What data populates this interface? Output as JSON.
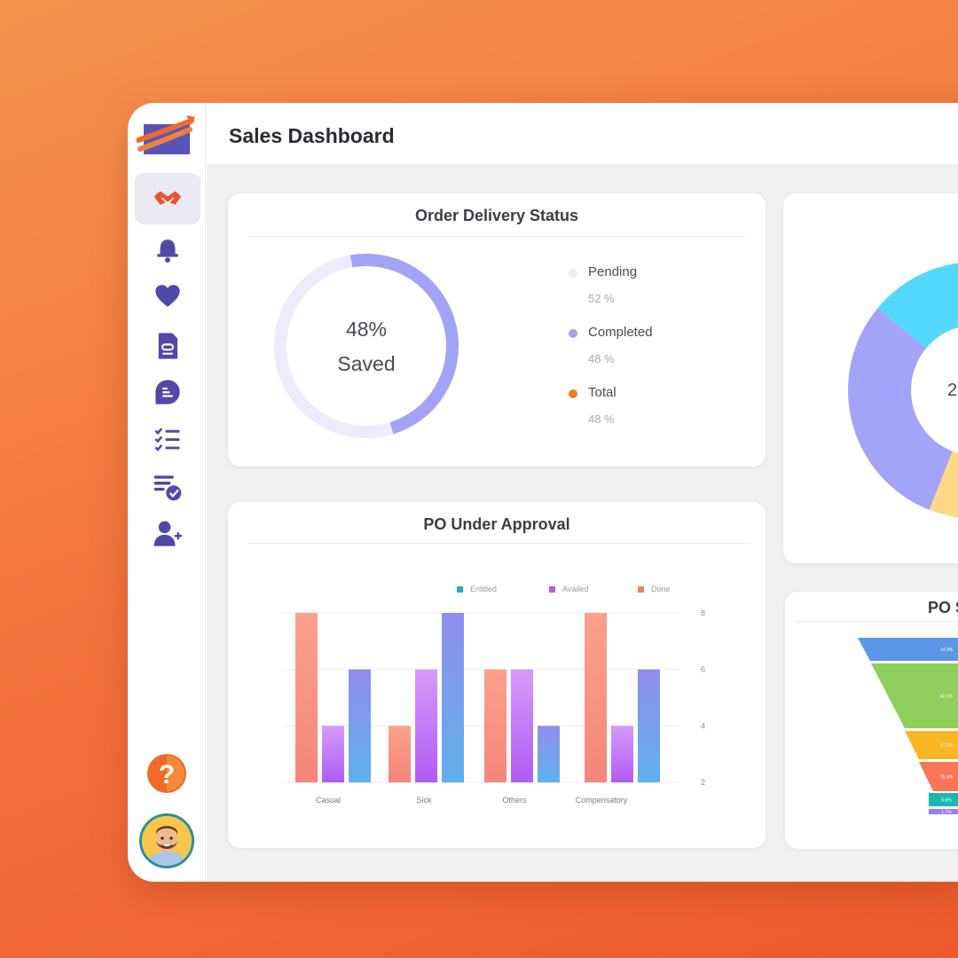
{
  "header": {
    "title": "Sales Dashboard"
  },
  "sidebar": {
    "items": [
      {
        "name": "handshake-icon",
        "active": true
      },
      {
        "name": "bell-icon"
      },
      {
        "name": "heart-icon"
      },
      {
        "name": "document-icon"
      },
      {
        "name": "chat-bubble-icon"
      },
      {
        "name": "checklist-icon"
      },
      {
        "name": "list-check-icon"
      },
      {
        "name": "add-user-icon"
      }
    ],
    "help_icon": "question-icon",
    "avatar": "user-avatar"
  },
  "order_delivery": {
    "title": "Order Delivery Status",
    "center_value": "48%",
    "center_label": "Saved",
    "progress": 0.48,
    "legend": [
      {
        "label": "Pending",
        "value": "52 %",
        "color": "#ececfb"
      },
      {
        "label": "Completed",
        "value": "48 %",
        "color": "#a3a3f5"
      },
      {
        "label": "Total",
        "value": "48 %",
        "color": "#f07a22"
      }
    ]
  },
  "po_approval": {
    "title": "PO Under Approval",
    "chart_data": {
      "type": "bar",
      "categories": [
        "Casual",
        "Sick",
        "Others",
        "Compensatory"
      ],
      "series": [
        {
          "name": "Entitled",
          "values": [
            8,
            4,
            6,
            8
          ],
          "color": "#f69a80"
        },
        {
          "name": "Availed",
          "values": [
            4,
            6,
            6,
            4
          ],
          "color": "#c17cf7"
        },
        {
          "name": "Done",
          "values": [
            6,
            8,
            4,
            6
          ],
          "color": "#7f95ea"
        }
      ],
      "legend_colors": [
        "#2fa3cf",
        "#b35cf2",
        "#f3806a"
      ],
      "yticks": [
        "8",
        "6",
        "4",
        "2"
      ],
      "ylim": [
        2,
        8
      ],
      "legend_position": "top"
    }
  },
  "donut_card": {
    "center_text": "2",
    "chart_data": {
      "type": "pie",
      "segments": [
        {
          "value": 0.14,
          "color": "#53d7fb"
        },
        {
          "value": 0.38,
          "color": "#fcd888"
        },
        {
          "value": 0.3,
          "color": "#a4a3f7"
        }
      ]
    }
  },
  "po_funnel": {
    "title": "PO S",
    "chart_data": {
      "type": "funnel",
      "stages": [
        {
          "label": "14.2%",
          "color": "#5c96e6"
        },
        {
          "label": "40.1%",
          "color": "#8fcd5d"
        },
        {
          "label": "17.2%",
          "color": "#fbb625"
        },
        {
          "label": "15.4%",
          "color": "#f87656"
        },
        {
          "label": "6.6%",
          "color": "#1cb8b0"
        },
        {
          "label": "1.7%",
          "color": "#9a80e6"
        }
      ]
    }
  }
}
